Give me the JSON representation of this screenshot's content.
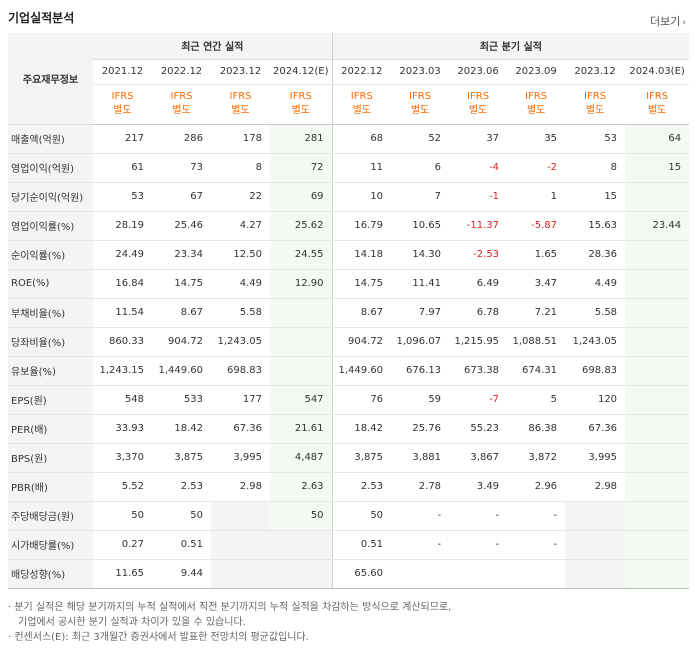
{
  "title": "기업실적분석",
  "more_label": "더보기",
  "header": {
    "corner_label": "주요재무정보",
    "annual_group": "최근 연간 실적",
    "quarter_group": "최근 분기 실적",
    "columns": [
      "2021.12",
      "2022.12",
      "2023.12",
      "2024.12(E)",
      "2022.12",
      "2023.03",
      "2023.06",
      "2023.09",
      "2023.12",
      "2024.03(E)"
    ],
    "basis_line1": "IFRS",
    "basis_line2": "별도"
  },
  "rows": [
    {
      "label": "매출액(억원)",
      "values": [
        "217",
        "286",
        "178",
        "281",
        "68",
        "52",
        "37",
        "35",
        "53",
        "64"
      ]
    },
    {
      "label": "영업이익(억원)",
      "values": [
        "61",
        "73",
        "8",
        "72",
        "11",
        "6",
        "-4",
        "-2",
        "8",
        "15"
      ]
    },
    {
      "label": "당기순이익(억원)",
      "values": [
        "53",
        "67",
        "22",
        "69",
        "10",
        "7",
        "-1",
        "1",
        "15",
        ""
      ]
    },
    {
      "label": "영업이익률(%)",
      "values": [
        "28.19",
        "25.46",
        "4.27",
        "25.62",
        "16.79",
        "10.65",
        "-11.37",
        "-5.87",
        "15.63",
        "23.44"
      ]
    },
    {
      "label": "순이익률(%)",
      "values": [
        "24.49",
        "23.34",
        "12.50",
        "24.55",
        "14.18",
        "14.30",
        "-2.53",
        "1.65",
        "28.36",
        ""
      ]
    },
    {
      "label": "ROE(%)",
      "values": [
        "16.84",
        "14.75",
        "4.49",
        "12.90",
        "14.75",
        "11.41",
        "6.49",
        "3.47",
        "4.49",
        ""
      ]
    },
    {
      "label": "부채비율(%)",
      "values": [
        "11.54",
        "8.67",
        "5.58",
        "",
        "8.67",
        "7.97",
        "6.78",
        "7.21",
        "5.58",
        ""
      ]
    },
    {
      "label": "당좌비율(%)",
      "values": [
        "860.33",
        "904.72",
        "1,243.05",
        "",
        "904.72",
        "1,096.07",
        "1,215.95",
        "1,088.51",
        "1,243.05",
        ""
      ]
    },
    {
      "label": "유보율(%)",
      "values": [
        "1,243.15",
        "1,449.60",
        "698.83",
        "",
        "1,449.60",
        "676.13",
        "673.38",
        "674.31",
        "698.83",
        ""
      ]
    },
    {
      "label": "EPS(원)",
      "values": [
        "548",
        "533",
        "177",
        "547",
        "76",
        "59",
        "-7",
        "5",
        "120",
        ""
      ]
    },
    {
      "label": "PER(배)",
      "values": [
        "33.93",
        "18.42",
        "67.36",
        "21.61",
        "18.42",
        "25.76",
        "55.23",
        "86.38",
        "67.36",
        ""
      ]
    },
    {
      "label": "BPS(원)",
      "values": [
        "3,370",
        "3,875",
        "3,995",
        "4,487",
        "3,875",
        "3,881",
        "3,867",
        "3,872",
        "3,995",
        ""
      ]
    },
    {
      "label": "PBR(배)",
      "values": [
        "5.52",
        "2.53",
        "2.98",
        "2.63",
        "2.53",
        "2.78",
        "3.49",
        "2.96",
        "2.98",
        ""
      ]
    },
    {
      "label": "주당배당금(원)",
      "values": [
        "50",
        "50",
        "",
        "50",
        "50",
        "-",
        "-",
        "-",
        "",
        ""
      ]
    },
    {
      "label": "시가배당률(%)",
      "values": [
        "0.27",
        "0.51",
        "",
        "",
        "0.51",
        "-",
        "-",
        "-",
        "",
        ""
      ]
    },
    {
      "label": "배당성향(%)",
      "values": [
        "11.65",
        "9.44",
        "",
        "",
        "65.60",
        "",
        "",
        "",
        "",
        ""
      ]
    }
  ],
  "notes": [
    "· 분기 실적은 해당 분기까지의 누적 실적에서 직전 분기까지의 누적 실적을 차감하는 방식으로 계산되므로,",
    "  기업에서 공시한 분기 실적과 차이가 있을 수 있습니다.",
    "· 컨센서스(E): 최근 3개월간 증권사에서 발표한 전망치의 평균값입니다."
  ]
}
